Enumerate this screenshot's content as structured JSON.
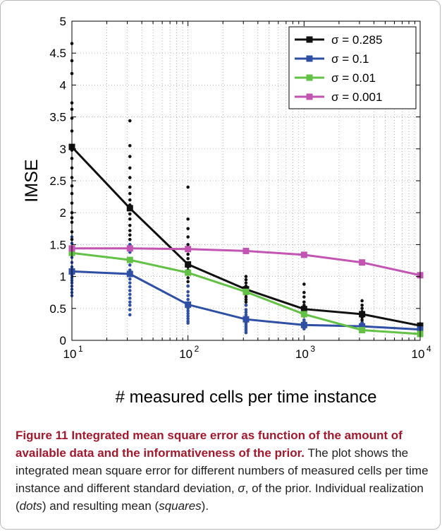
{
  "chart_data": {
    "type": "line",
    "xscale": "log",
    "xlim": [
      10,
      10000
    ],
    "ylim": [
      0,
      5
    ],
    "xlabel": "# measured cells per time instance",
    "ylabel": "IMSE",
    "x_ticks": [
      "10",
      "10",
      "10",
      "10"
    ],
    "x_tick_exponents": [
      "1",
      "2",
      "3",
      "4"
    ],
    "y_ticks": [
      "0",
      "0.5",
      "1",
      "1.5",
      "2",
      "2.5",
      "3",
      "3.5",
      "4",
      "4.5",
      "5"
    ],
    "grid": true,
    "legend_position": "top-right",
    "x": [
      10,
      31.6,
      100,
      316,
      1000,
      3160,
      10000
    ],
    "series": [
      {
        "name": "σ = 0.285",
        "color": "#111111",
        "values": [
          3.03,
          2.07,
          1.19,
          0.8,
          0.49,
          0.41,
          0.23
        ]
      },
      {
        "name": "σ = 0.1",
        "color": "#2e4fa3",
        "values": [
          1.08,
          1.04,
          0.56,
          0.33,
          0.24,
          0.22,
          0.17
        ]
      },
      {
        "name": "σ = 0.01",
        "color": "#63c146",
        "values": [
          1.37,
          1.26,
          1.06,
          0.76,
          0.41,
          0.16,
          0.1
        ]
      },
      {
        "name": "σ = 0.001",
        "color": "#c254b2",
        "values": [
          1.44,
          1.44,
          1.43,
          1.4,
          1.34,
          1.22,
          1.02
        ]
      }
    ],
    "dots": [
      {
        "color": "#111111",
        "groups": [
          [
            4.65,
            4.38,
            4.18,
            3.72,
            3.62,
            3.48,
            3.28,
            3.05,
            2.98,
            2.85,
            2.7,
            2.55,
            2.42,
            2.3,
            2.15,
            2.0,
            1.92,
            1.85,
            1.7,
            1.58
          ],
          [
            3.44,
            3.05,
            2.88,
            2.7,
            2.55,
            2.4,
            2.3,
            2.2,
            2.12,
            2.05,
            1.98,
            1.9,
            1.8,
            1.72,
            1.65,
            1.58,
            1.5,
            1.42
          ],
          [
            2.4,
            1.9,
            1.75,
            1.62,
            1.5,
            1.42,
            1.35,
            1.28,
            1.2,
            1.15,
            1.1,
            1.05,
            0.98,
            0.92,
            0.85
          ],
          [
            1.0,
            0.95,
            0.9,
            0.85,
            0.8,
            0.76,
            0.72,
            0.68,
            0.64,
            0.6,
            0.55
          ],
          [
            0.88,
            0.75,
            0.68,
            0.6,
            0.55,
            0.5,
            0.46,
            0.42,
            0.38
          ],
          [
            0.62,
            0.55,
            0.5,
            0.45,
            0.4,
            0.36,
            0.32,
            0.28
          ],
          [
            0.26,
            0.24,
            0.22,
            0.2
          ]
        ]
      },
      {
        "color": "#2e4fa3",
        "groups": [
          [
            1.62,
            1.52,
            1.4,
            1.3,
            1.22,
            1.15,
            1.1,
            1.06,
            1.02,
            0.98,
            0.94,
            0.9,
            0.85,
            0.8,
            0.75,
            0.7
          ],
          [
            1.5,
            1.38,
            1.28,
            1.18,
            1.1,
            1.02,
            0.96,
            0.9,
            0.84,
            0.78,
            0.72,
            0.66,
            0.6,
            0.55,
            0.48,
            0.4
          ],
          [
            0.85,
            0.76,
            0.7,
            0.64,
            0.58,
            0.54,
            0.5,
            0.46,
            0.42,
            0.38,
            0.34,
            0.3,
            0.27
          ],
          [
            0.55,
            0.48,
            0.44,
            0.4,
            0.36,
            0.33,
            0.3,
            0.27,
            0.24,
            0.21,
            0.18,
            0.15,
            0.12
          ],
          [
            0.32,
            0.29,
            0.26,
            0.24,
            0.22,
            0.2,
            0.18
          ],
          [
            0.27,
            0.25,
            0.23,
            0.21,
            0.19
          ],
          [
            0.19,
            0.18,
            0.17,
            0.16
          ]
        ]
      }
    ]
  },
  "caption": {
    "figure_label": "Figure 11",
    "figure_title": "Integrated mean square error as function of the amount of available data and the informativeness of the prior",
    "text_1": "The plot shows the integrated mean square error for different numbers of measured cells per time instance and different standard deviation,",
    "sigma_symbol": "σ",
    "text_2": ", of the prior. Individual realization (",
    "dots_word": "dots",
    "text_3": ") and resulting mean (",
    "squares_word": "squares",
    "text_4": ")."
  }
}
